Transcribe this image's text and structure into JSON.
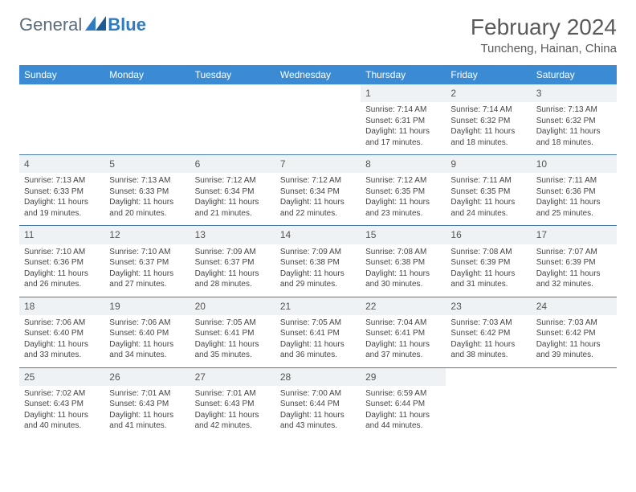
{
  "logo": {
    "text1": "General",
    "text2": "Blue"
  },
  "title": "February 2024",
  "location": "Tuncheng, Hainan, China",
  "colors": {
    "header_bg": "#3b8bd4",
    "header_text": "#ffffff",
    "daynum_bg": "#eef2f5",
    "row_border": "#4a7aa8",
    "text": "#444444",
    "title_text": "#5a5a5a",
    "logo_gray": "#5a6b7a",
    "logo_blue": "#2f7cc4"
  },
  "weekdays": [
    "Sunday",
    "Monday",
    "Tuesday",
    "Wednesday",
    "Thursday",
    "Friday",
    "Saturday"
  ],
  "grid": [
    [
      null,
      null,
      null,
      null,
      {
        "n": "1",
        "sr": "7:14 AM",
        "ss": "6:31 PM",
        "dl": "11 hours and 17 minutes."
      },
      {
        "n": "2",
        "sr": "7:14 AM",
        "ss": "6:32 PM",
        "dl": "11 hours and 18 minutes."
      },
      {
        "n": "3",
        "sr": "7:13 AM",
        "ss": "6:32 PM",
        "dl": "11 hours and 18 minutes."
      }
    ],
    [
      {
        "n": "4",
        "sr": "7:13 AM",
        "ss": "6:33 PM",
        "dl": "11 hours and 19 minutes."
      },
      {
        "n": "5",
        "sr": "7:13 AM",
        "ss": "6:33 PM",
        "dl": "11 hours and 20 minutes."
      },
      {
        "n": "6",
        "sr": "7:12 AM",
        "ss": "6:34 PM",
        "dl": "11 hours and 21 minutes."
      },
      {
        "n": "7",
        "sr": "7:12 AM",
        "ss": "6:34 PM",
        "dl": "11 hours and 22 minutes."
      },
      {
        "n": "8",
        "sr": "7:12 AM",
        "ss": "6:35 PM",
        "dl": "11 hours and 23 minutes."
      },
      {
        "n": "9",
        "sr": "7:11 AM",
        "ss": "6:35 PM",
        "dl": "11 hours and 24 minutes."
      },
      {
        "n": "10",
        "sr": "7:11 AM",
        "ss": "6:36 PM",
        "dl": "11 hours and 25 minutes."
      }
    ],
    [
      {
        "n": "11",
        "sr": "7:10 AM",
        "ss": "6:36 PM",
        "dl": "11 hours and 26 minutes."
      },
      {
        "n": "12",
        "sr": "7:10 AM",
        "ss": "6:37 PM",
        "dl": "11 hours and 27 minutes."
      },
      {
        "n": "13",
        "sr": "7:09 AM",
        "ss": "6:37 PM",
        "dl": "11 hours and 28 minutes."
      },
      {
        "n": "14",
        "sr": "7:09 AM",
        "ss": "6:38 PM",
        "dl": "11 hours and 29 minutes."
      },
      {
        "n": "15",
        "sr": "7:08 AM",
        "ss": "6:38 PM",
        "dl": "11 hours and 30 minutes."
      },
      {
        "n": "16",
        "sr": "7:08 AM",
        "ss": "6:39 PM",
        "dl": "11 hours and 31 minutes."
      },
      {
        "n": "17",
        "sr": "7:07 AM",
        "ss": "6:39 PM",
        "dl": "11 hours and 32 minutes."
      }
    ],
    [
      {
        "n": "18",
        "sr": "7:06 AM",
        "ss": "6:40 PM",
        "dl": "11 hours and 33 minutes."
      },
      {
        "n": "19",
        "sr": "7:06 AM",
        "ss": "6:40 PM",
        "dl": "11 hours and 34 minutes."
      },
      {
        "n": "20",
        "sr": "7:05 AM",
        "ss": "6:41 PM",
        "dl": "11 hours and 35 minutes."
      },
      {
        "n": "21",
        "sr": "7:05 AM",
        "ss": "6:41 PM",
        "dl": "11 hours and 36 minutes."
      },
      {
        "n": "22",
        "sr": "7:04 AM",
        "ss": "6:41 PM",
        "dl": "11 hours and 37 minutes."
      },
      {
        "n": "23",
        "sr": "7:03 AM",
        "ss": "6:42 PM",
        "dl": "11 hours and 38 minutes."
      },
      {
        "n": "24",
        "sr": "7:03 AM",
        "ss": "6:42 PM",
        "dl": "11 hours and 39 minutes."
      }
    ],
    [
      {
        "n": "25",
        "sr": "7:02 AM",
        "ss": "6:43 PM",
        "dl": "11 hours and 40 minutes."
      },
      {
        "n": "26",
        "sr": "7:01 AM",
        "ss": "6:43 PM",
        "dl": "11 hours and 41 minutes."
      },
      {
        "n": "27",
        "sr": "7:01 AM",
        "ss": "6:43 PM",
        "dl": "11 hours and 42 minutes."
      },
      {
        "n": "28",
        "sr": "7:00 AM",
        "ss": "6:44 PM",
        "dl": "11 hours and 43 minutes."
      },
      {
        "n": "29",
        "sr": "6:59 AM",
        "ss": "6:44 PM",
        "dl": "11 hours and 44 minutes."
      },
      null,
      null
    ]
  ],
  "labels": {
    "sunrise": "Sunrise:",
    "sunset": "Sunset:",
    "daylight": "Daylight:"
  }
}
